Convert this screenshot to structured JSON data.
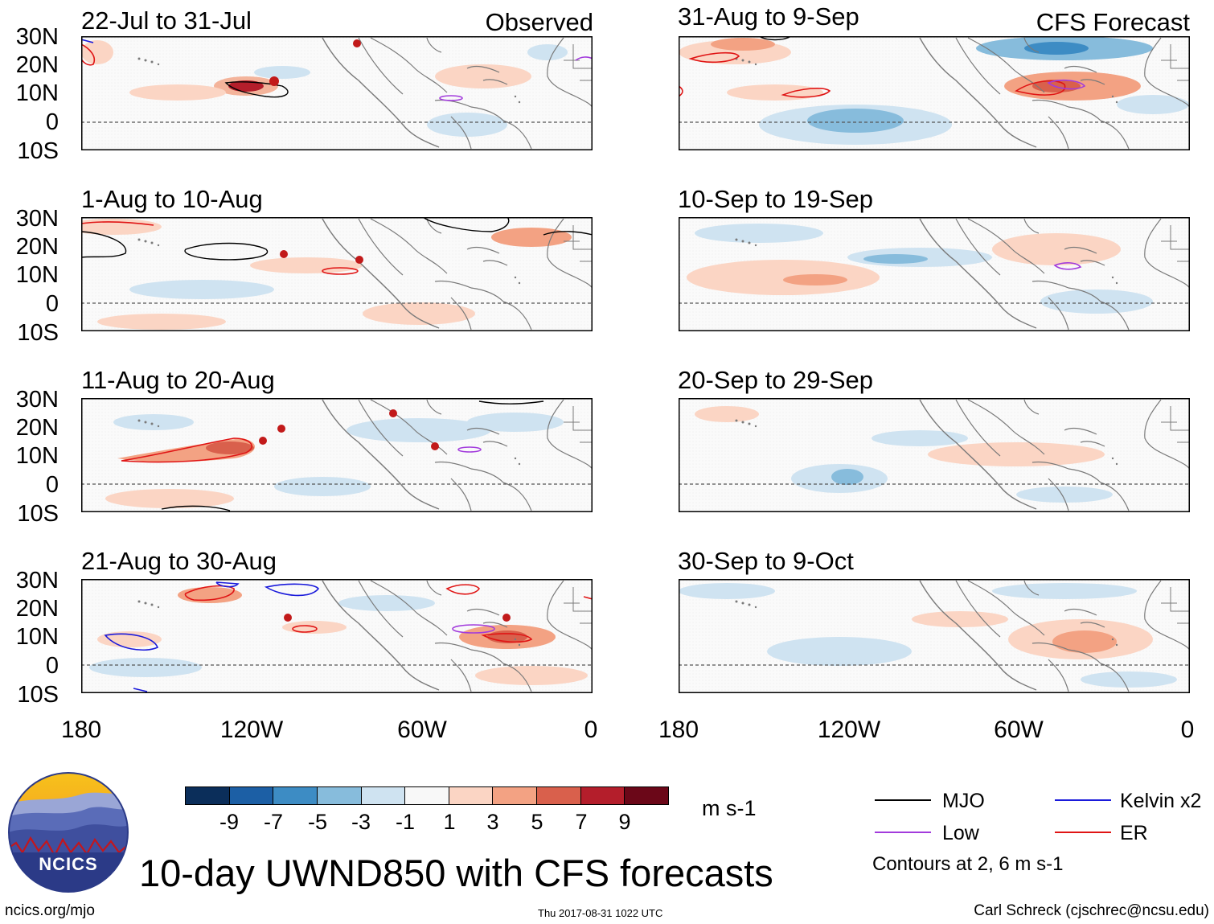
{
  "main_title": "10-day UWND850 with CFS forecasts",
  "columns": {
    "observed_label": "Observed",
    "forecast_label": "CFS Forecast"
  },
  "panels": {
    "observed": [
      {
        "period": "22-Jul to 31-Jul"
      },
      {
        "period": "1-Aug to 10-Aug"
      },
      {
        "period": "11-Aug to 20-Aug"
      },
      {
        "period": "21-Aug to 30-Aug"
      }
    ],
    "forecast": [
      {
        "period": "31-Aug to 9-Sep"
      },
      {
        "period": "10-Sep to 19-Sep"
      },
      {
        "period": "20-Sep to 29-Sep"
      },
      {
        "period": "30-Sep to 9-Oct"
      }
    ]
  },
  "axes": {
    "latitude_labels": [
      "30N",
      "20N",
      "10N",
      "0",
      "10S"
    ],
    "longitude_labels": [
      "180",
      "120W",
      "60W",
      "0"
    ]
  },
  "colorbar": {
    "ticks": [
      "-9",
      "-7",
      "-5",
      "-3",
      "-1",
      "1",
      "3",
      "5",
      "7",
      "9"
    ],
    "colors": [
      "#0b2e5a",
      "#1c5fa5",
      "#3d8cc4",
      "#87bcdc",
      "#cfe3f1",
      "#f8f8f8",
      "#fbd5c4",
      "#f3a283",
      "#d9604c",
      "#b41e2b",
      "#6b0718"
    ],
    "units": "m s-1"
  },
  "legend": {
    "items": [
      {
        "label": "MJO",
        "color": "#000000"
      },
      {
        "label": "Kelvin x2",
        "color": "#1a1adb"
      },
      {
        "label": "Low",
        "color": "#a23bdc"
      },
      {
        "label": "ER",
        "color": "#e01515"
      }
    ],
    "note": "Contours at 2, 6 m s-1"
  },
  "footer": {
    "logo_text": "NCICS",
    "url": "ncics.org/mjo",
    "timestamp": "Thu 2017-08-31 1022 UTC",
    "credit": "Carl Schreck (cjschrec@ncsu.edu)"
  }
}
